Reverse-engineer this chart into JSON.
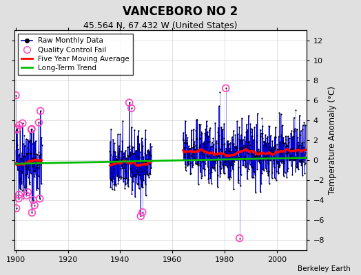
{
  "title": "VANCEBORO NO 2",
  "subtitle": "45.564 N, 67.432 W (United States)",
  "ylabel": "Temperature Anomaly (°C)",
  "credit": "Berkeley Earth",
  "xlim": [
    1899.5,
    2011.5
  ],
  "ylim": [
    -9,
    13
  ],
  "yticks": [
    -8,
    -6,
    -4,
    -2,
    0,
    2,
    4,
    6,
    8,
    10,
    12
  ],
  "xticks": [
    1900,
    1920,
    1940,
    1960,
    1980,
    2000
  ],
  "bg_color": "#e0e0e0",
  "plot_bg_color": "#ffffff",
  "raw_color": "#0000cc",
  "qc_color": "#ff44bb",
  "mavg_color": "#ff0000",
  "trend_color": "#00bb00",
  "seed": 42
}
